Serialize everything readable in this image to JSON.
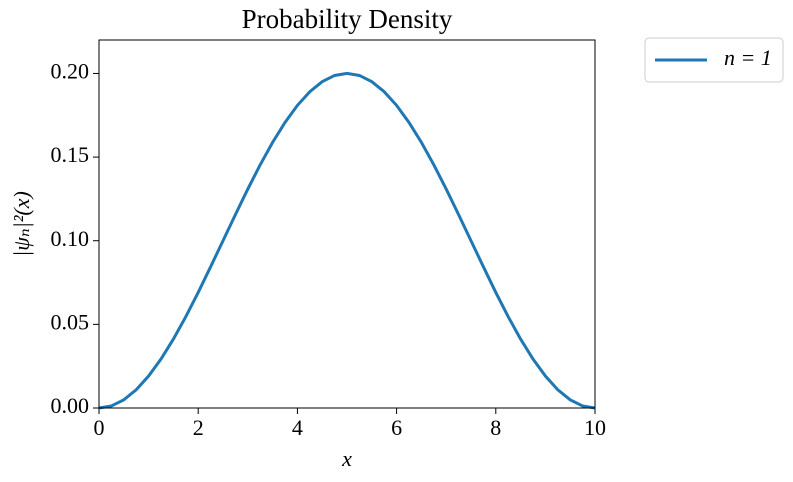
{
  "chart_data": {
    "type": "line",
    "title": "Probability Density",
    "xlabel": "x",
    "ylabel": "|ψₙ|²(x)",
    "x": [
      0,
      0.25,
      0.5,
      0.75,
      1,
      1.25,
      1.5,
      1.75,
      2,
      2.25,
      2.5,
      2.75,
      3,
      3.25,
      3.5,
      3.75,
      4,
      4.25,
      4.5,
      4.75,
      5,
      5.25,
      5.5,
      5.75,
      6,
      6.25,
      6.5,
      6.75,
      7,
      7.25,
      7.5,
      7.75,
      8,
      8.25,
      8.5,
      8.75,
      9,
      9.25,
      9.5,
      9.75,
      10
    ],
    "series": [
      {
        "name": "n = 1",
        "color": "#1f77b4",
        "values": [
          0,
          0.0012,
          0.0049,
          0.0109,
          0.0191,
          0.0293,
          0.0412,
          0.0546,
          0.0691,
          0.0844,
          0.1,
          0.1156,
          0.1309,
          0.1454,
          0.1588,
          0.1707,
          0.1809,
          0.1891,
          0.1951,
          0.1988,
          0.2,
          0.1988,
          0.1951,
          0.1891,
          0.1809,
          0.1707,
          0.1588,
          0.1454,
          0.1309,
          0.1156,
          0.1,
          0.0844,
          0.0691,
          0.0546,
          0.0412,
          0.0293,
          0.0191,
          0.0109,
          0.0049,
          0.0012,
          0
        ]
      }
    ],
    "xlim": [
      0,
      10
    ],
    "ylim": [
      0,
      0.22
    ],
    "xticks": [
      0,
      2,
      4,
      6,
      8,
      10
    ],
    "yticks": [
      {
        "value": 0,
        "label": "0.00"
      },
      {
        "value": 0.05,
        "label": "0.05"
      },
      {
        "value": 0.1,
        "label": "0.10"
      },
      {
        "value": 0.15,
        "label": "0.15"
      },
      {
        "value": 0.2,
        "label": "0.20"
      }
    ],
    "legend": "outside-upper-right",
    "grid": false
  }
}
